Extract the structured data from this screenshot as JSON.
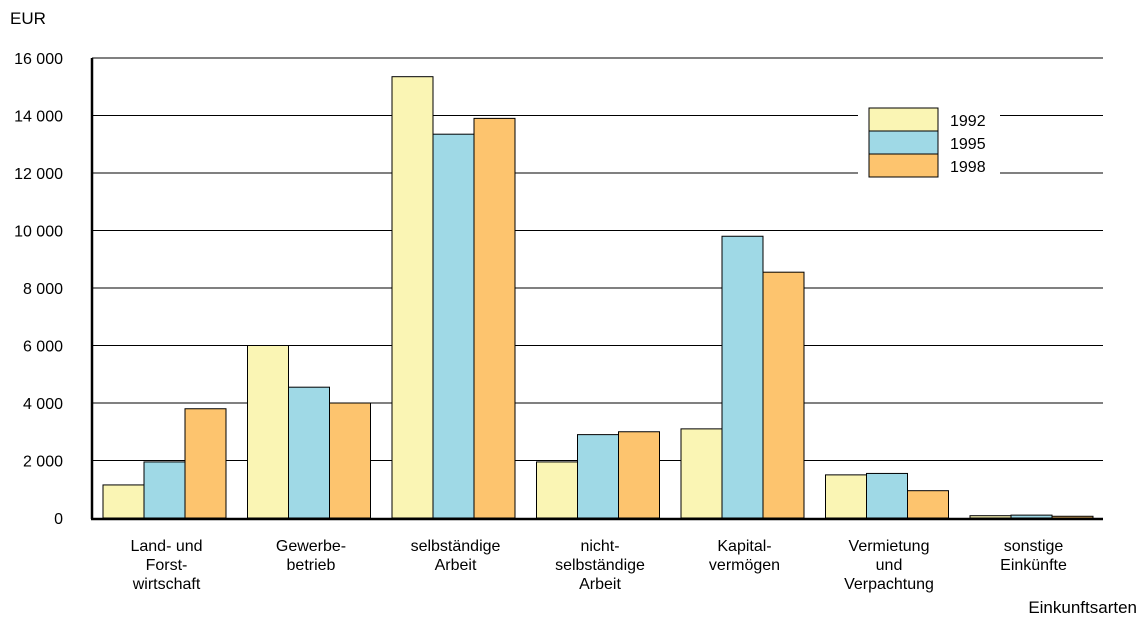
{
  "chart_data": {
    "type": "bar",
    "title": "",
    "ylabel": "EUR",
    "xlabel": "Einkunftsarten",
    "ylim": [
      0,
      16000
    ],
    "yticks": [
      0,
      2000,
      4000,
      6000,
      8000,
      10000,
      12000,
      14000,
      16000
    ],
    "ytick_labels": [
      "0",
      "2 000",
      "4 000",
      "6 000",
      "8 000",
      "10 000",
      "12 000",
      "14 000",
      "16 000"
    ],
    "grid": true,
    "legend_position": "top-right",
    "categories": [
      [
        "Land- und",
        "Forst-",
        "wirtschaft"
      ],
      [
        "Gewerbe-",
        "betrieb"
      ],
      [
        "selbständige",
        "Arbeit"
      ],
      [
        "nicht-",
        "selbständige",
        "Arbeit"
      ],
      [
        "Kapital-",
        "vermögen"
      ],
      [
        "Vermietung",
        "und",
        "Verpachtung"
      ],
      [
        "sonstige",
        "Einkünfte"
      ]
    ],
    "series": [
      {
        "name": "1992",
        "color": "#faf5b4",
        "values": [
          1150,
          6000,
          15350,
          1950,
          3100,
          1500,
          80
        ]
      },
      {
        "name": "1995",
        "color": "#9fd9e6",
        "values": [
          1950,
          4550,
          13350,
          2900,
          9800,
          1550,
          100
        ]
      },
      {
        "name": "1998",
        "color": "#fdc46e",
        "values": [
          3800,
          4000,
          13900,
          3000,
          8550,
          950,
          60
        ]
      }
    ]
  }
}
